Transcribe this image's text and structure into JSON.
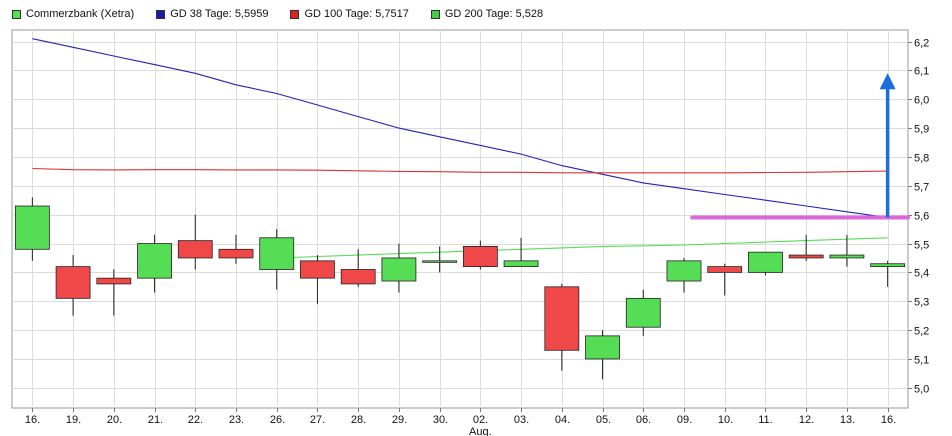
{
  "chart_data": {
    "type": "candlestick",
    "legend": [
      {
        "label": "Commerzbank (Xetra)",
        "color": "#55dd55"
      },
      {
        "label": "GD 38 Tage: 5,5959",
        "color": "#1a1aaa"
      },
      {
        "label": "GD 100 Tage: 5,7517",
        "color": "#dd2222"
      },
      {
        "label": "GD 200 Tage: 5,528",
        "color": "#44cc44"
      }
    ],
    "x_labels": [
      "16.",
      "19.",
      "20.",
      "21.",
      "22.",
      "23.",
      "26.",
      "27.",
      "28.",
      "29.",
      "30.",
      "02.",
      "03.",
      "04.",
      "05.",
      "06.",
      "09.",
      "10.",
      "11.",
      "12.",
      "13.",
      "16."
    ],
    "x_sublabel": {
      "index": 11,
      "text": "Aug."
    },
    "y_ticks": [
      5.0,
      5.1,
      5.2,
      5.3,
      5.4,
      5.5,
      5.6,
      5.7,
      5.8,
      5.9,
      6.0,
      6.1,
      6.2
    ],
    "y_tick_labels": [
      "5,0",
      "5,1",
      "5,2",
      "5,3",
      "5,4",
      "5,5",
      "5,6",
      "5,7",
      "5,8",
      "5,9",
      "6,0",
      "6,1",
      "6,2"
    ],
    "ylim": [
      4.93,
      6.24
    ],
    "grid": true,
    "colors": {
      "up": "#55dd55",
      "down": "#f04848",
      "gd38": "#2222bb",
      "gd100": "#dd3333",
      "gd200": "#55dd55",
      "arrow": "#1a6fdd",
      "support": "#dd66dd"
    },
    "candles": [
      {
        "open": 5.48,
        "close": 5.63,
        "high": 5.66,
        "low": 5.44
      },
      {
        "open": 5.42,
        "close": 5.31,
        "high": 5.46,
        "low": 5.25
      },
      {
        "open": 5.38,
        "close": 5.36,
        "high": 5.41,
        "low": 5.25
      },
      {
        "open": 5.38,
        "close": 5.5,
        "high": 5.53,
        "low": 5.33
      },
      {
        "open": 5.51,
        "close": 5.45,
        "high": 5.6,
        "low": 5.41
      },
      {
        "open": 5.48,
        "close": 5.45,
        "high": 5.53,
        "low": 5.43
      },
      {
        "open": 5.41,
        "close": 5.52,
        "high": 5.55,
        "low": 5.34
      },
      {
        "open": 5.44,
        "close": 5.38,
        "high": 5.46,
        "low": 5.29
      },
      {
        "open": 5.41,
        "close": 5.36,
        "high": 5.48,
        "low": 5.35
      },
      {
        "open": 5.37,
        "close": 5.45,
        "high": 5.5,
        "low": 5.33
      },
      {
        "open": 5.44,
        "close": 5.44,
        "high": 5.49,
        "low": 5.4
      },
      {
        "open": 5.49,
        "close": 5.42,
        "high": 5.51,
        "low": 5.41
      },
      {
        "open": 5.42,
        "close": 5.44,
        "high": 5.52,
        "low": 5.42
      },
      {
        "open": 5.35,
        "close": 5.13,
        "high": 5.36,
        "low": 5.06
      },
      {
        "open": 5.1,
        "close": 5.18,
        "high": 5.2,
        "low": 5.03
      },
      {
        "open": 5.21,
        "close": 5.31,
        "high": 5.34,
        "low": 5.18
      },
      {
        "open": 5.37,
        "close": 5.44,
        "high": 5.45,
        "low": 5.33
      },
      {
        "open": 5.42,
        "close": 5.4,
        "high": 5.43,
        "low": 5.32
      },
      {
        "open": 5.4,
        "close": 5.47,
        "high": 5.47,
        "low": 5.39
      },
      {
        "open": 5.46,
        "close": 5.45,
        "high": 5.53,
        "low": 5.44
      },
      {
        "open": 5.45,
        "close": 5.46,
        "high": 5.53,
        "low": 5.42
      },
      {
        "open": 5.42,
        "close": 5.43,
        "high": 5.44,
        "low": 5.35
      }
    ],
    "series": [
      {
        "name": "GD 38 Tage",
        "values": [
          6.21,
          6.18,
          6.15,
          6.12,
          6.09,
          6.05,
          6.02,
          5.98,
          5.94,
          5.9,
          5.87,
          5.84,
          5.81,
          5.77,
          5.74,
          5.71,
          5.69,
          5.67,
          5.65,
          5.63,
          5.61,
          5.59
        ]
      },
      {
        "name": "GD 100 Tage",
        "values": [
          5.76,
          5.756,
          5.755,
          5.756,
          5.756,
          5.755,
          5.755,
          5.754,
          5.752,
          5.75,
          5.749,
          5.747,
          5.747,
          5.745,
          5.745,
          5.745,
          5.745,
          5.745,
          5.746,
          5.747,
          5.749,
          5.751
        ]
      },
      {
        "name": "GD 200 Tage",
        "start_index": 6,
        "values": [
          5.45,
          5.455,
          5.46,
          5.465,
          5.47,
          5.475,
          5.48,
          5.485,
          5.49,
          5.492,
          5.495,
          5.5,
          5.505,
          5.51,
          5.515,
          5.52
        ]
      }
    ],
    "annotations": {
      "support_line": {
        "value": 5.59,
        "from_index": 16.2,
        "to_index": 21.5
      },
      "arrow": {
        "index": 21,
        "from": 5.59,
        "to": 6.09
      }
    }
  }
}
